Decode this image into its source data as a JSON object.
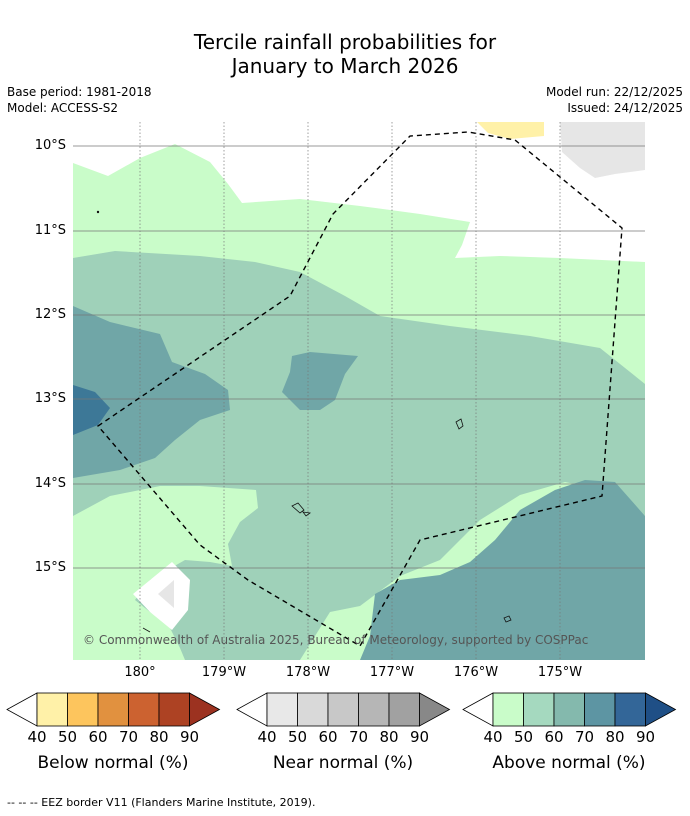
{
  "title_line1": "Tercile rainfall probabilities for",
  "title_line2": "January to March 2026",
  "base_period": "Base period: 1981-2018",
  "model": "Model: ACCESS-S2",
  "model_run": "Model run: 22/12/2025",
  "issued": "Issued: 24/12/2025",
  "lat_labels": [
    "10°S",
    "11°S",
    "12°S",
    "13°S",
    "14°S",
    "15°S"
  ],
  "lon_labels": [
    "180°",
    "179°W",
    "178°W",
    "177°W",
    "176°W",
    "175°W"
  ],
  "copyright": "© Commonwealth of Australia 2025, Bureau of Meteorology, supported by COSPPac",
  "colorbars": [
    {
      "label": "Below normal (%)",
      "ticks": [
        "40",
        "50",
        "60",
        "70",
        "80",
        "90"
      ],
      "colors": [
        "#fff1a8",
        "#fdc55d",
        "#e1913f",
        "#cc6230",
        "#ad4223",
        "#9c3220"
      ]
    },
    {
      "label": "Near normal (%)",
      "ticks": [
        "40",
        "50",
        "60",
        "70",
        "80",
        "90"
      ],
      "colors": [
        "#e8e8e8",
        "#d9d9d9",
        "#c8c8c8",
        "#b6b6b6",
        "#a1a1a1",
        "#888888"
      ]
    },
    {
      "label": "Above normal (%)",
      "ticks": [
        "40",
        "50",
        "60",
        "70",
        "80",
        "90"
      ],
      "colors": [
        "#c9fcc9",
        "#a5d9bf",
        "#84b9ad",
        "#5d95a3",
        "#336698",
        "#1f4f86"
      ]
    }
  ],
  "footnote": "--  --  -- EEZ border V11 (Flanders Marine Institute, 2019)."
}
